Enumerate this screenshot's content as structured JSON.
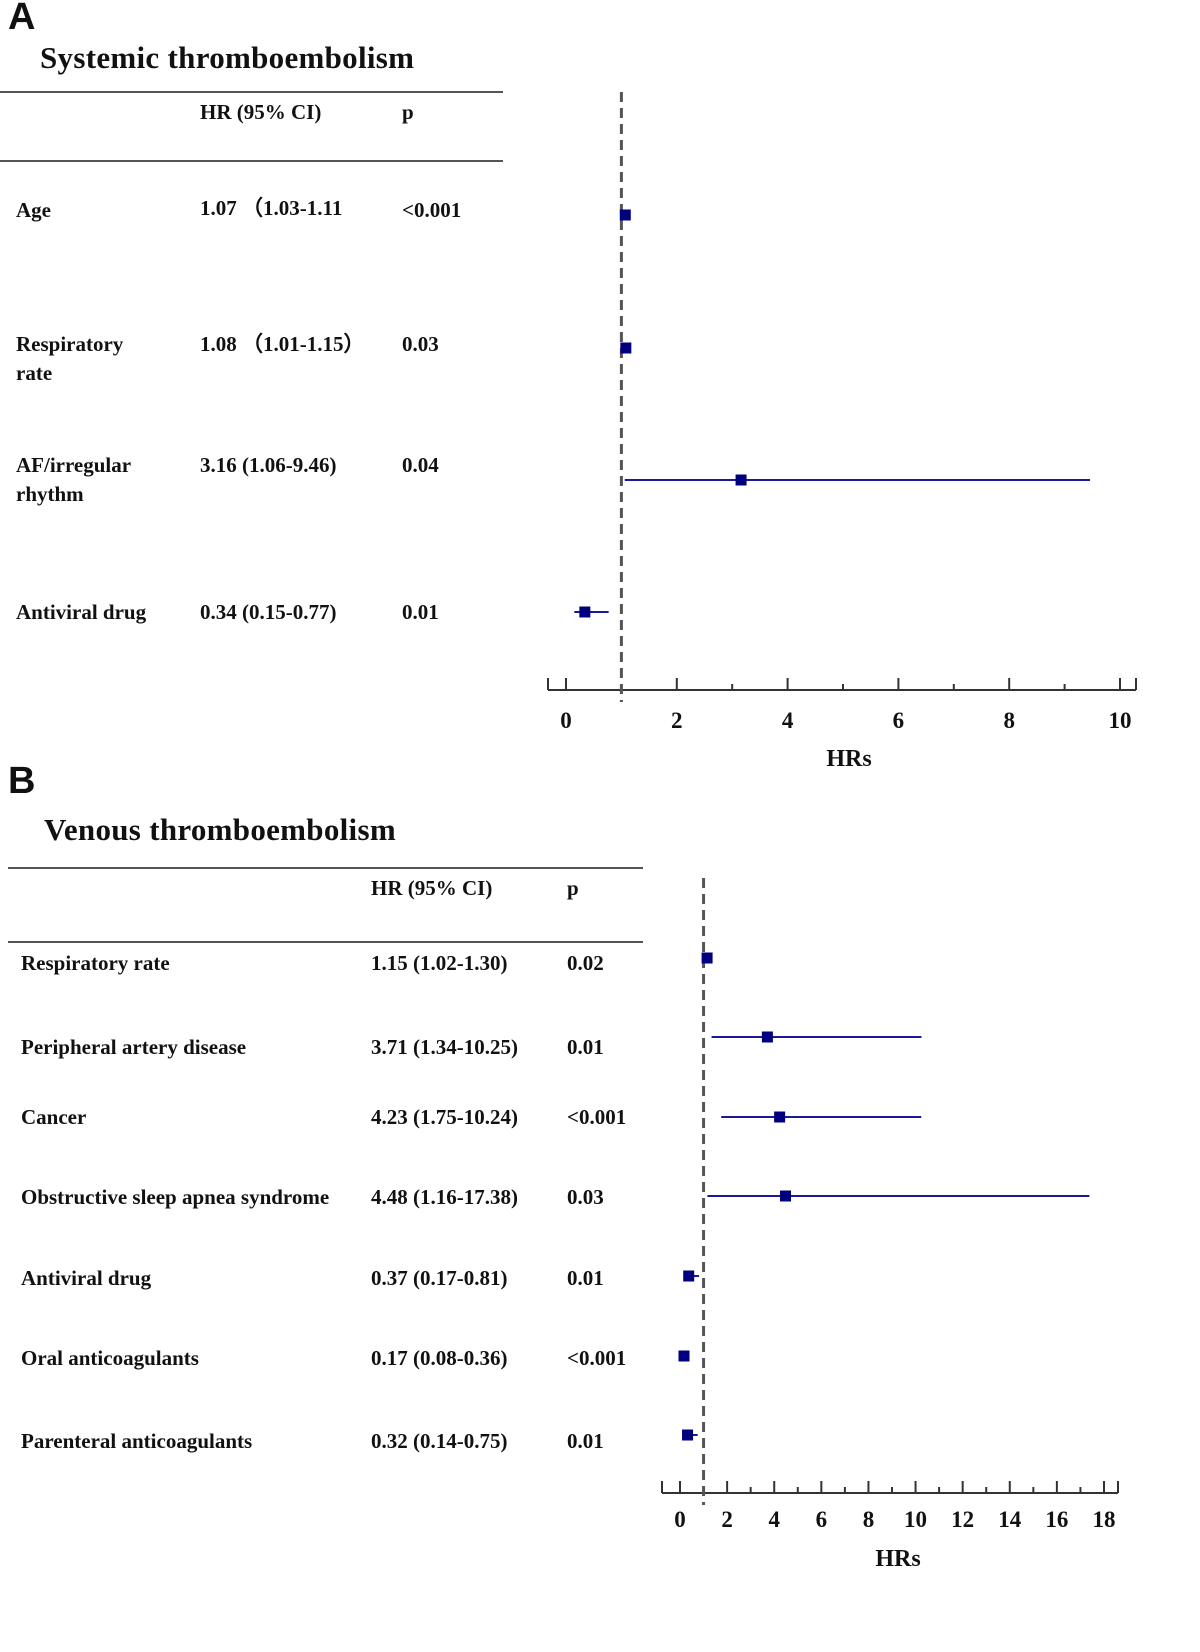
{
  "chart_data": [
    {
      "type": "forest",
      "panel": "A",
      "title": "Systemic thromboembolism",
      "columns": [
        "HR (95% CI)",
        "p"
      ],
      "xlabel": "HRs",
      "xlim": [
        0,
        10
      ],
      "x_ticks": [
        0,
        2,
        4,
        6,
        8,
        10
      ],
      "reference_line": 1,
      "rows": [
        {
          "label": "Age",
          "hr_text": "1.07 （1.03-1.11",
          "p": "<0.001",
          "hr": 1.07,
          "lo": 1.03,
          "hi": 1.11
        },
        {
          "label": "Respiratory rate",
          "hr_text": "1.08 （1.01-1.15）",
          "p": "0.03",
          "hr": 1.08,
          "lo": 1.01,
          "hi": 1.15
        },
        {
          "label": "AF/irregular rhythm",
          "hr_text": "3.16 (1.06-9.46)",
          "p": "0.04",
          "hr": 3.16,
          "lo": 1.06,
          "hi": 9.46
        },
        {
          "label": "Antiviral drug",
          "hr_text": "0.34 (0.15-0.77)",
          "p": "0.01",
          "hr": 0.34,
          "lo": 0.15,
          "hi": 0.77
        }
      ]
    },
    {
      "type": "forest",
      "panel": "B",
      "title": "Venous thromboembolism",
      "columns": [
        "HR (95% CI)",
        "p"
      ],
      "xlabel": "HRs",
      "xlim": [
        0,
        18
      ],
      "x_ticks": [
        0,
        2,
        4,
        6,
        8,
        10,
        12,
        14,
        16,
        18
      ],
      "reference_line": 1,
      "rows": [
        {
          "label": "Respiratory rate",
          "hr_text": "1.15 (1.02-1.30)",
          "p": "0.02",
          "hr": 1.15,
          "lo": 1.02,
          "hi": 1.3
        },
        {
          "label": "Peripheral artery disease",
          "hr_text": "3.71 (1.34-10.25)",
          "p": "0.01",
          "hr": 3.71,
          "lo": 1.34,
          "hi": 10.25
        },
        {
          "label": "Cancer",
          "hr_text": "4.23 (1.75-10.24)",
          "p": "<0.001",
          "hr": 4.23,
          "lo": 1.75,
          "hi": 10.24
        },
        {
          "label": "Obstructive sleep apnea syndrome",
          "hr_text": "4.48 (1.16-17.38)",
          "p": "0.03",
          "hr": 4.48,
          "lo": 1.16,
          "hi": 17.38
        },
        {
          "label": "Antiviral drug",
          "hr_text": "0.37 (0.17-0.81)",
          "p": "0.01",
          "hr": 0.37,
          "lo": 0.17,
          "hi": 0.81
        },
        {
          "label": "Oral anticoagulants",
          "hr_text": "0.17 (0.08-0.36)",
          "p": "<0.001",
          "hr": 0.17,
          "lo": 0.08,
          "hi": 0.36
        },
        {
          "label": "Parenteral anticoagulants",
          "hr_text": "0.32 (0.14-0.75)",
          "p": "0.01",
          "hr": 0.32,
          "lo": 0.14,
          "hi": 0.75
        }
      ]
    }
  ],
  "colors": {
    "marker": "#00007f",
    "ci_line": "#1a1a99",
    "reference": "#555555",
    "axis": "#333333"
  }
}
